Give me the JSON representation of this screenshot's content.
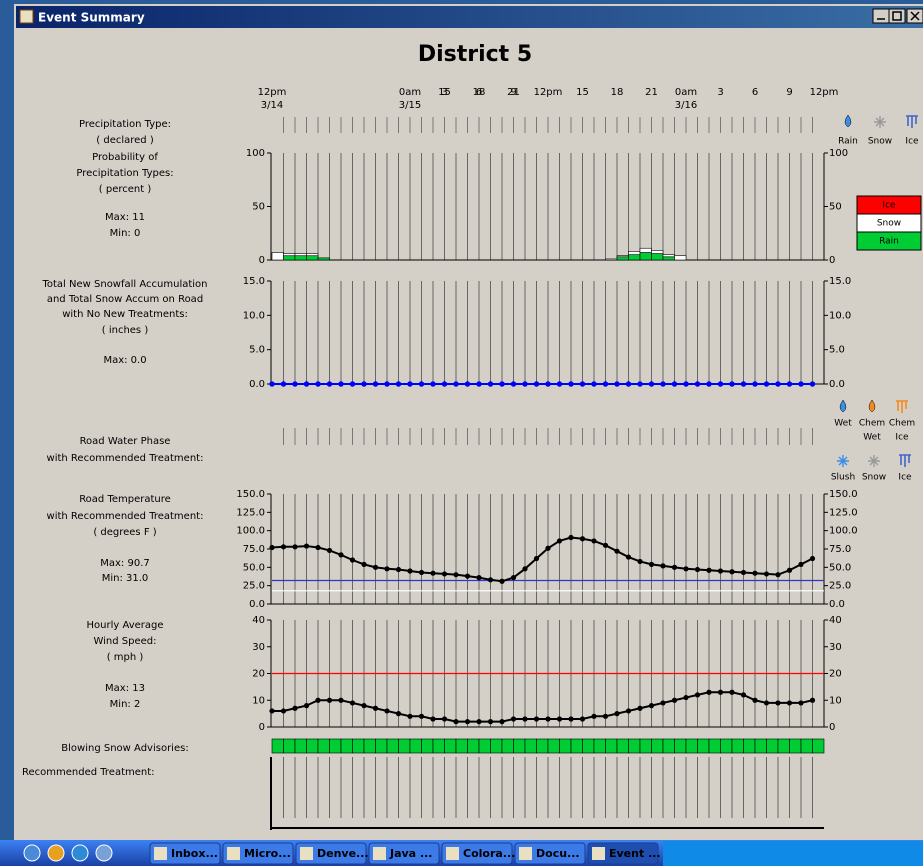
{
  "window_title": "Event Summary",
  "page_title": "District 5",
  "time_axis": {
    "xlim": [
      0,
      48
    ],
    "xticks": [
      {
        "value": 0,
        "label": "12pm"
      },
      15,
      18,
      21,
      {
        "value": 12,
        "label": "0am"
      },
      {
        "value": 15,
        "label": "3"
      },
      {
        "value": 18,
        "label": "6"
      },
      {
        "value": 21,
        "label": "9"
      },
      {
        "value": 24,
        "label": "12pm"
      },
      {
        "value": 27,
        "label": "15"
      },
      {
        "value": 30,
        "label": "18"
      },
      {
        "value": 33,
        "label": "21"
      },
      {
        "value": 36,
        "label": "0am"
      },
      {
        "value": 39,
        "label": "3"
      },
      {
        "value": 42,
        "label": "6"
      },
      {
        "value": 45,
        "label": "9"
      },
      {
        "value": 48,
        "label": "12pm"
      }
    ],
    "date_labels": [
      {
        "value": 0,
        "label": "3/14"
      },
      {
        "value": 12,
        "label": "3/15"
      },
      {
        "value": 36,
        "label": "3/16"
      }
    ],
    "hours": [
      0,
      1,
      2,
      3,
      4,
      5,
      6,
      7,
      8,
      9,
      10,
      11,
      12,
      13,
      14,
      15,
      16,
      17,
      18,
      19,
      20,
      21,
      22,
      23,
      24,
      25,
      26,
      27,
      28,
      29,
      30,
      31,
      32,
      33,
      34,
      35,
      36,
      37,
      38,
      39,
      40,
      41,
      42,
      43,
      44,
      45,
      46,
      47
    ]
  },
  "precip_type": {
    "label_lines": [
      "Precipitation Type:",
      "( declared )"
    ],
    "icons": [
      "Rain",
      "Snow",
      "Ice"
    ]
  },
  "chart_data": [
    {
      "type": "stacked-bar",
      "label_lines": [
        "Probability of",
        "Precipitation Types:",
        "( percent )",
        "Max: 11",
        "Min: 0"
      ],
      "x": [
        0,
        1,
        2,
        3,
        4,
        29,
        30,
        31,
        32,
        33,
        34,
        35
      ],
      "series": [
        {
          "name": "Rain",
          "color": "#00cc33",
          "values": [
            0,
            4,
            4,
            4,
            2,
            0,
            3,
            5,
            7,
            6,
            3,
            0
          ]
        },
        {
          "name": "Snow",
          "color": "#ffffff",
          "values": [
            7,
            2,
            2,
            2,
            0,
            1,
            1,
            3,
            4,
            3,
            2,
            4
          ]
        },
        {
          "name": "Ice",
          "color": "#ff0000",
          "values": [
            0,
            0,
            0,
            0,
            0,
            0,
            0,
            0,
            0,
            0,
            0,
            0
          ]
        }
      ],
      "ylim": [
        0,
        100
      ],
      "yticks": [
        0,
        50,
        100
      ],
      "right_tick_color": "#000000"
    },
    {
      "type": "line",
      "label_lines": [
        "Total New Snowfall Accumulation",
        "and Total Snow Accum on Road",
        "with No New Treatments:",
        "( inches )",
        "Max: 0.0"
      ],
      "label_colors": [
        "#000000",
        "#0000ff",
        "#0000ff",
        "#000000",
        "#000000"
      ],
      "series": [
        {
          "color": "#000000",
          "values": [
            0,
            0,
            0,
            0,
            0,
            0,
            0,
            0,
            0,
            0,
            0,
            0,
            0,
            0,
            0,
            0,
            0,
            0,
            0,
            0,
            0,
            0,
            0,
            0,
            0,
            0,
            0,
            0,
            0,
            0,
            0,
            0,
            0,
            0,
            0,
            0,
            0,
            0,
            0,
            0,
            0,
            0,
            0,
            0,
            0,
            0,
            0,
            0
          ]
        },
        {
          "color": "#0000ff",
          "values": [
            0,
            0,
            0,
            0,
            0,
            0,
            0,
            0,
            0,
            0,
            0,
            0,
            0,
            0,
            0,
            0,
            0,
            0,
            0,
            0,
            0,
            0,
            0,
            0,
            0,
            0,
            0,
            0,
            0,
            0,
            0,
            0,
            0,
            0,
            0,
            0,
            0,
            0,
            0,
            0,
            0,
            0,
            0,
            0,
            0,
            0,
            0,
            0
          ]
        }
      ],
      "ylim": [
        0,
        15
      ],
      "yticks": [
        {
          "value": 0,
          "label": "0.0"
        },
        {
          "value": 5,
          "label": "5.0"
        },
        {
          "value": 10,
          "label": "10.0"
        },
        {
          "value": 15,
          "label": "15.0"
        }
      ],
      "right_tick_color": "#0000ff"
    },
    {
      "type": "line",
      "label_lines": [
        "Road Temperature",
        "with Recommended Treatment:",
        "( degrees F )",
        "Max: 90.7",
        "Min: 31.0"
      ],
      "series": [
        {
          "color": "#000000",
          "values": [
            77,
            78,
            78,
            79,
            77,
            73,
            67,
            60,
            54,
            50,
            48,
            47,
            45,
            43,
            42,
            41,
            40,
            38,
            36,
            33,
            31,
            36,
            48,
            62,
            76,
            86,
            90.7,
            89,
            86,
            80,
            72,
            64,
            58,
            54,
            52,
            50,
            48,
            47,
            46,
            45,
            44,
            43,
            42,
            41,
            40,
            46,
            54,
            62
          ]
        }
      ],
      "reference_lines": [
        {
          "value": 32,
          "color": "#3333cc"
        },
        {
          "value": 18,
          "color": "#ffffff"
        }
      ],
      "ylim": [
        0,
        150
      ],
      "yticks": [
        {
          "value": 0,
          "label": "0.0"
        },
        {
          "value": 25,
          "label": "25.0"
        },
        {
          "value": 50,
          "label": "50.0"
        },
        {
          "value": 75,
          "label": "75.0"
        },
        {
          "value": 100,
          "label": "100.0"
        },
        {
          "value": 125,
          "label": "125.0"
        },
        {
          "value": 150,
          "label": "150.0"
        }
      ],
      "right_tick_color": "#000000"
    },
    {
      "type": "line",
      "label_lines": [
        "Hourly Average",
        "Wind Speed:",
        "( mph )",
        "Max: 13",
        "Min: 2"
      ],
      "series": [
        {
          "color": "#000000",
          "values": [
            6,
            6,
            7,
            8,
            10,
            10,
            10,
            9,
            8,
            7,
            6,
            5,
            4,
            4,
            3,
            3,
            2,
            2,
            2,
            2,
            2,
            3,
            3,
            3,
            3,
            3,
            3,
            3,
            4,
            4,
            5,
            6,
            7,
            8,
            9,
            10,
            11,
            12,
            13,
            13,
            13,
            12,
            10,
            9,
            9,
            9,
            9,
            10
          ]
        }
      ],
      "reference_lines": [
        {
          "value": 20,
          "color": "#ff0000"
        }
      ],
      "ylim": [
        0,
        40
      ],
      "yticks": [
        0,
        10,
        20,
        30,
        40
      ],
      "right_tick_color": "#000000"
    }
  ],
  "water_phase": {
    "label_lines": [
      "Road Water Phase",
      "with Recommended Treatment:"
    ],
    "icons": [
      [
        "Wet"
      ],
      [
        "Chem",
        "Wet"
      ],
      [
        "Chem",
        "Ice"
      ],
      [
        "Slush"
      ],
      [
        "Snow"
      ],
      [
        "Ice"
      ]
    ]
  },
  "blowing_snow": {
    "label": "Blowing Snow Advisories:",
    "color": "#00cc33"
  },
  "treatment_label": "Recommended Treatment:",
  "taskbar": [
    "Inbox...",
    "Micro...",
    "Denve...",
    "Java ...",
    "Colora...",
    "Docu...",
    "Event ..."
  ]
}
